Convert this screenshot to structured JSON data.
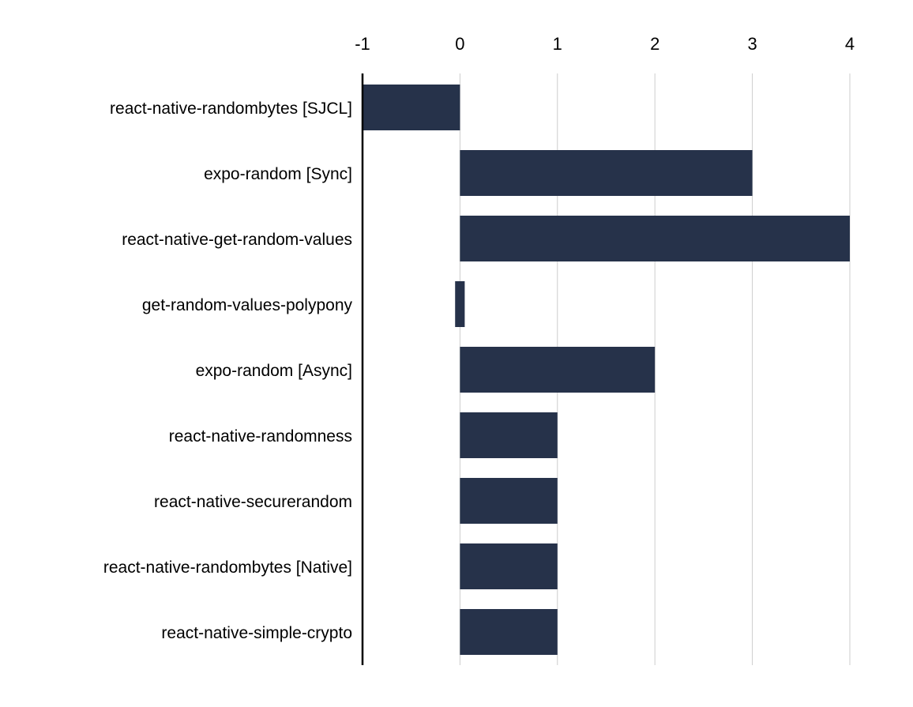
{
  "chart_data": {
    "type": "bar",
    "orientation": "horizontal",
    "title": "",
    "xlabel": "",
    "ylabel": "",
    "xlim": [
      -1,
      4
    ],
    "x_ticks": [
      "-1",
      "0",
      "1",
      "2",
      "3",
      "4"
    ],
    "x_axis_position": "top",
    "grid": "vertical",
    "legend": "none",
    "categories": [
      "react-native-randombytes [SJCL]",
      "expo-random [Sync]",
      "react-native-get-random-values",
      "get-random-values-polypony",
      "expo-random [Async]",
      "react-native-randomness",
      "react-native-securerandom",
      "react-native-randombytes [Native]",
      "react-native-simple-crypto"
    ],
    "values": [
      -1,
      3,
      4,
      -0.05,
      2,
      1,
      1,
      1,
      1
    ],
    "bar_color": "#26324a",
    "grid_color": "#cccccc",
    "axis_color": "#000000"
  }
}
